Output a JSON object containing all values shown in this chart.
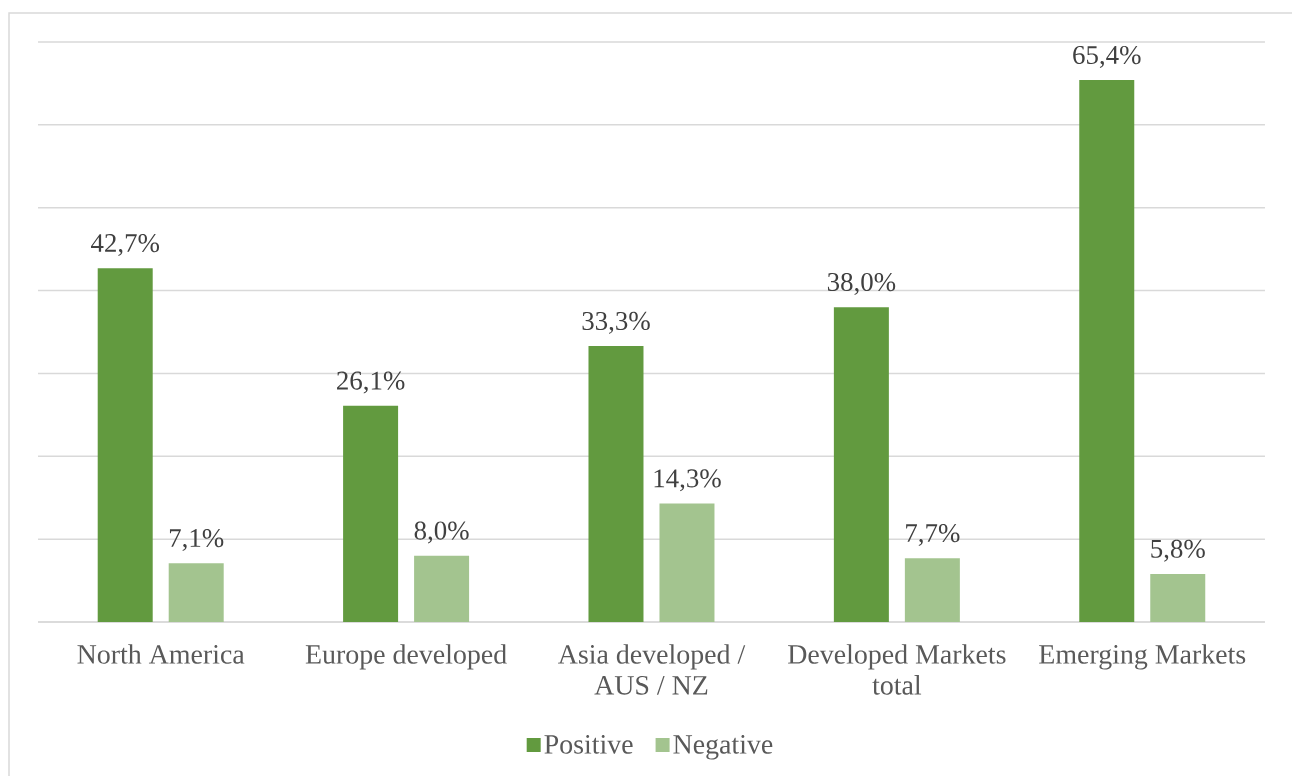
{
  "chart_data": {
    "type": "bar",
    "categories": [
      "North America",
      "Europe developed",
      "Asia developed / AUS / NZ",
      "Developed Markets total",
      "Emerging Markets"
    ],
    "series": [
      {
        "name": "Positive",
        "color": "#629a3f",
        "values": [
          42.7,
          26.1,
          33.3,
          38.0,
          65.4
        ],
        "value_labels": [
          "42,7%",
          "26,1%",
          "33,3%",
          "38,0%",
          "65,4%"
        ]
      },
      {
        "name": "Negative",
        "color": "#a3c48f",
        "values": [
          7.1,
          8.0,
          14.3,
          7.7,
          5.8
        ],
        "value_labels": [
          "7,1%",
          "8,0%",
          "14,3%",
          "7,7%",
          "5,8%"
        ]
      }
    ],
    "ylim": [
      0,
      70
    ],
    "yticks": [
      {
        "value": 0,
        "label": null
      },
      {
        "value": 10,
        "label": null
      },
      {
        "value": 20,
        "label": null
      },
      {
        "value": 30,
        "label": null
      },
      {
        "value": 40,
        "label": null
      },
      {
        "value": 50,
        "label": null
      },
      {
        "value": 60,
        "label": null
      },
      {
        "value": 70,
        "label": null
      }
    ],
    "grid": "y",
    "legend": "bottom",
    "tick_labels": "x"
  }
}
